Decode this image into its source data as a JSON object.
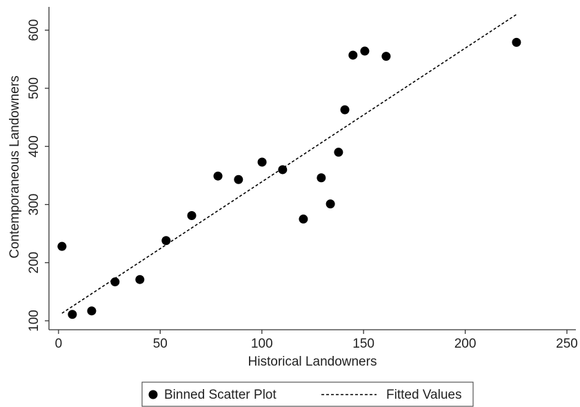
{
  "chart_data": {
    "type": "scatter",
    "xlabel": "Historical Landowners",
    "ylabel": "Contemporaneous Landowners",
    "xlim": [
      -4.7,
      254.4
    ],
    "ylim": [
      84.6,
      640
    ],
    "xticks": [
      0,
      50,
      100,
      150,
      200,
      250
    ],
    "yticks": [
      100,
      200,
      300,
      400,
      500,
      600
    ],
    "grid": false,
    "legend": "bottom",
    "series": [
      {
        "name": "Binned Scatter Plot",
        "color": "#000000",
        "mark": "dot",
        "x": [
          1.7,
          6.8,
          16.3,
          27.8,
          40,
          52.9,
          65.5,
          78.4,
          88.5,
          100.1,
          110.2,
          120.4,
          129.2,
          133.7,
          137.7,
          140.8,
          144.8,
          150.6,
          161.1,
          225.2
        ],
        "values": [
          228,
          111,
          117,
          167,
          171,
          238,
          281,
          349,
          343,
          373,
          360,
          275,
          346,
          301,
          390,
          463,
          557,
          564,
          555,
          579
        ]
      },
      {
        "name": "Fitted Values",
        "color": "#000000",
        "mark": "dashed-line",
        "x": [
          1.7,
          225.2
        ],
        "values": [
          113,
          627
        ]
      }
    ]
  }
}
